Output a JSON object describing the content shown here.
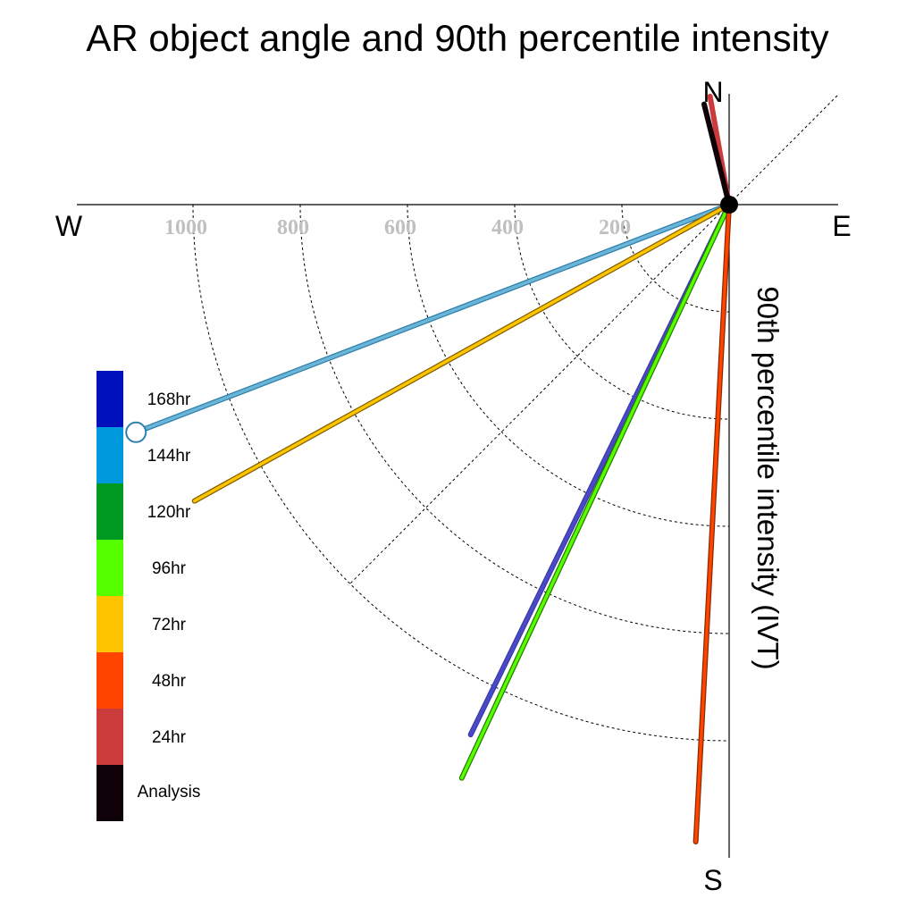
{
  "chart_data": {
    "type": "polar-vector",
    "title": "AR object angle and 90th percentile intensity",
    "radial_axis_label": "90th percentile intensity (IVT)",
    "compass": {
      "north": "N",
      "south": "S",
      "east": "E",
      "west": "W"
    },
    "radial_ticks": [
      1000,
      800,
      600,
      400,
      200
    ],
    "radial_tick_labels": [
      "1000",
      "800",
      "600",
      "400",
      "200"
    ],
    "radial_range": [
      0,
      1200
    ],
    "grid": true,
    "legend": {
      "placement": "left",
      "entries": [
        {
          "label": "168hr",
          "color": "#0011bb"
        },
        {
          "label": "144hr",
          "color": "#0099dd"
        },
        {
          "label": "120hr",
          "color": "#009922"
        },
        {
          "label": "96hr",
          "color": "#55ff00"
        },
        {
          "label": "72hr",
          "color": "#ffc400"
        },
        {
          "label": "48hr",
          "color": "#ff4400"
        },
        {
          "label": "24hr",
          "color": "#cc3b3b"
        },
        {
          "label": "Analysis",
          "color": "#0e0208"
        }
      ]
    },
    "series": [
      {
        "name": "24hr",
        "angle_deg": 350,
        "intensity": 205,
        "color": "#cc3b3b",
        "outline": "#cc3b3b"
      },
      {
        "name": "Analysis",
        "angle_deg": 346,
        "intensity": 193,
        "color": "#0e0208",
        "outline": "#0e0208"
      },
      {
        "name": "144hr",
        "angle_deg": 249,
        "intensity": 1185,
        "color": "#6bb6d6",
        "outline": "#2e7fae",
        "end_marker": true
      },
      {
        "name": "72hr",
        "angle_deg": 241,
        "intensity": 1140,
        "color": "#ffc400",
        "outline": "#806000"
      },
      {
        "name": "168hr",
        "angle_deg": 206,
        "intensity": 1100,
        "color": "#4a4ac8",
        "outline": "#3a3aa8"
      },
      {
        "name": "96hr",
        "angle_deg": 205,
        "intensity": 1180,
        "color": "#55ff00",
        "outline": "#2a7a00"
      },
      {
        "name": "48hr",
        "angle_deg": 183,
        "intensity": 1190,
        "color": "#ff4400",
        "outline": "#8a2a00"
      }
    ]
  }
}
